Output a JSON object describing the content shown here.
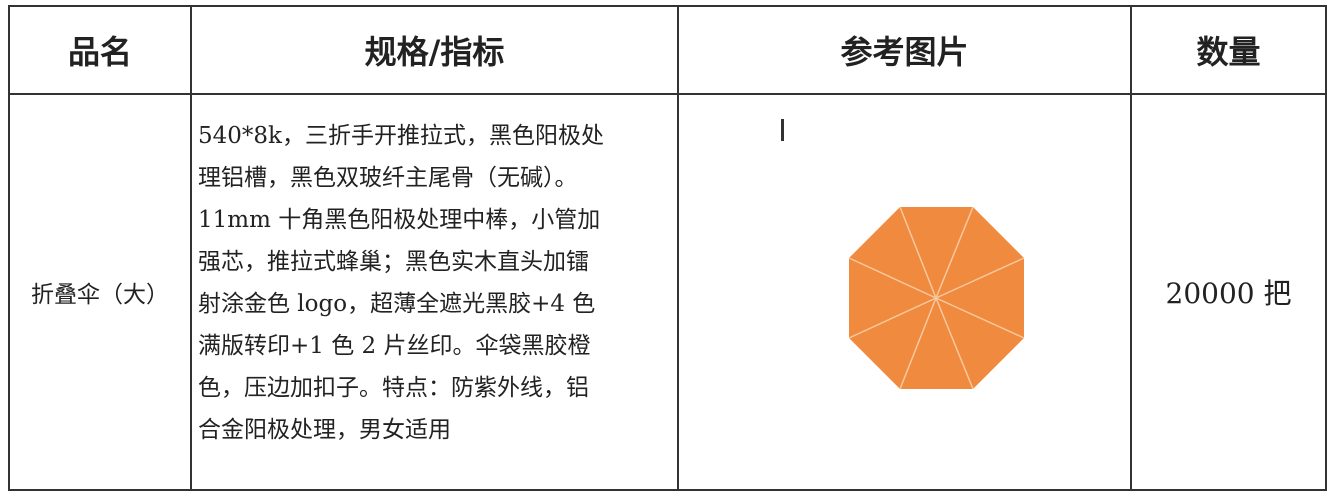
{
  "table": {
    "headers": [
      "品名",
      "规格/指标",
      "参考图片",
      "数量"
    ],
    "rows": [
      [
        "折叠伞（大）",
        [
          "540*8k，三折手开推拉式，黑色阳极处",
          "理铝槽，黑色双玻纤主尾骨（无碱）。",
          "11mm 十角黑色阳极处理中棒，小管加",
          "强芯，推拉式蜂巢；黑色实木直头加镭",
          "射涂金色 logo，超薄全遮光黑胶+4 色",
          "满版转印+1 色 2 片丝印。伞袋黑胶橙",
          "色，压边加扣子。特点：防紫外线，铝",
          "合金阳极处理，男女适用"
        ],
        "20000 把"
      ]
    ]
  }
}
